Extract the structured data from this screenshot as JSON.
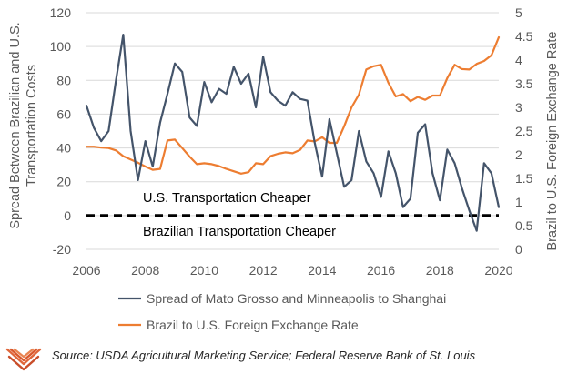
{
  "chart_data": {
    "type": "line",
    "x_range": [
      2006,
      2020
    ],
    "x_ticks": [
      "2006",
      "2008",
      "2010",
      "2012",
      "2014",
      "2016",
      "2018",
      "2020"
    ],
    "y_left": {
      "label": "Spread Between Brazilian and U.S. Transportation Costs",
      "label_lines": [
        "Spread Between Brazilian and U.S.",
        "Transportation Costs"
      ],
      "range": [
        -20,
        120
      ],
      "ticks": [
        "-20",
        "0",
        "20",
        "40",
        "60",
        "80",
        "100",
        "120"
      ]
    },
    "y_right": {
      "label": "Brazil to U.S. Foreign Exchange Rate",
      "range": [
        0,
        5
      ],
      "ticks": [
        "0",
        "0.5",
        "1",
        "1.5",
        "2",
        "2.5",
        "3",
        "3.5",
        "4",
        "4.5",
        "5"
      ]
    },
    "grid": true,
    "reference_line": {
      "y": 0,
      "style": "dashed",
      "color": "#000000"
    },
    "annotations": [
      "U.S. Transportation Cheaper",
      "Brazilian Transportation Cheaper"
    ],
    "legend_position": "bottom",
    "series": [
      {
        "name": "Spread of Mato Grosso and Minneapolis to Shanghai",
        "axis": "left",
        "color": "#44546A",
        "x": [
          2006.0,
          2006.25,
          2006.5,
          2006.75,
          2007.0,
          2007.25,
          2007.5,
          2007.75,
          2008.0,
          2008.25,
          2008.5,
          2008.75,
          2009.0,
          2009.25,
          2009.5,
          2009.75,
          2010.0,
          2010.25,
          2010.5,
          2010.75,
          2011.0,
          2011.25,
          2011.5,
          2011.75,
          2012.0,
          2012.25,
          2012.5,
          2012.75,
          2013.0,
          2013.25,
          2013.5,
          2013.75,
          2014.0,
          2014.25,
          2014.5,
          2014.75,
          2015.0,
          2015.25,
          2015.5,
          2015.75,
          2016.0,
          2016.25,
          2016.5,
          2016.75,
          2017.0,
          2017.25,
          2017.5,
          2017.75,
          2018.0,
          2018.25,
          2018.5,
          2018.75,
          2019.0,
          2019.25,
          2019.5,
          2019.75,
          2020.0
        ],
        "values": [
          65,
          52,
          44,
          50,
          80,
          107,
          50,
          21,
          44,
          29,
          55,
          72,
          90,
          85,
          58,
          53,
          79,
          67,
          75,
          72,
          88,
          78,
          84,
          64,
          94,
          73,
          68,
          65,
          73,
          69,
          68,
          43,
          23,
          57,
          37,
          17,
          21,
          50,
          32,
          25,
          11,
          38,
          25,
          5,
          10,
          49,
          54,
          25,
          9,
          39,
          31,
          16,
          3,
          -9,
          31,
          25,
          5
        ]
      },
      {
        "name": "Brazil to U.S. Foreign Exchange Rate",
        "axis": "right",
        "color": "#ED7D31",
        "x": [
          2006.0,
          2006.25,
          2006.5,
          2006.75,
          2007.0,
          2007.25,
          2007.5,
          2007.75,
          2008.0,
          2008.25,
          2008.5,
          2008.75,
          2009.0,
          2009.25,
          2009.5,
          2009.75,
          2010.0,
          2010.25,
          2010.5,
          2010.75,
          2011.0,
          2011.25,
          2011.5,
          2011.75,
          2012.0,
          2012.25,
          2012.5,
          2012.75,
          2013.0,
          2013.25,
          2013.5,
          2013.75,
          2014.0,
          2014.25,
          2014.5,
          2014.75,
          2015.0,
          2015.25,
          2015.5,
          2015.75,
          2016.0,
          2016.25,
          2016.5,
          2016.75,
          2017.0,
          2017.25,
          2017.5,
          2017.75,
          2018.0,
          2018.25,
          2018.5,
          2018.75,
          2019.0,
          2019.25,
          2019.5,
          2019.75,
          2020.0
        ],
        "values": [
          2.17,
          2.17,
          2.15,
          2.14,
          2.09,
          1.97,
          1.9,
          1.83,
          1.75,
          1.68,
          1.7,
          2.3,
          2.32,
          2.14,
          1.96,
          1.8,
          1.82,
          1.8,
          1.76,
          1.7,
          1.65,
          1.6,
          1.63,
          1.82,
          1.8,
          1.97,
          2.02,
          2.05,
          2.03,
          2.1,
          2.3,
          2.28,
          2.37,
          2.25,
          2.25,
          2.6,
          3.0,
          3.27,
          3.8,
          3.87,
          3.9,
          3.52,
          3.23,
          3.28,
          3.13,
          3.22,
          3.16,
          3.25,
          3.25,
          3.62,
          3.9,
          3.81,
          3.8,
          3.92,
          3.98,
          4.1,
          4.48
        ]
      }
    ]
  },
  "source": "Source: USDA Agricultural Marketing Service; Federal Reserve Bank of St. Louis",
  "logo_icon": "chevron-stripes-logo"
}
